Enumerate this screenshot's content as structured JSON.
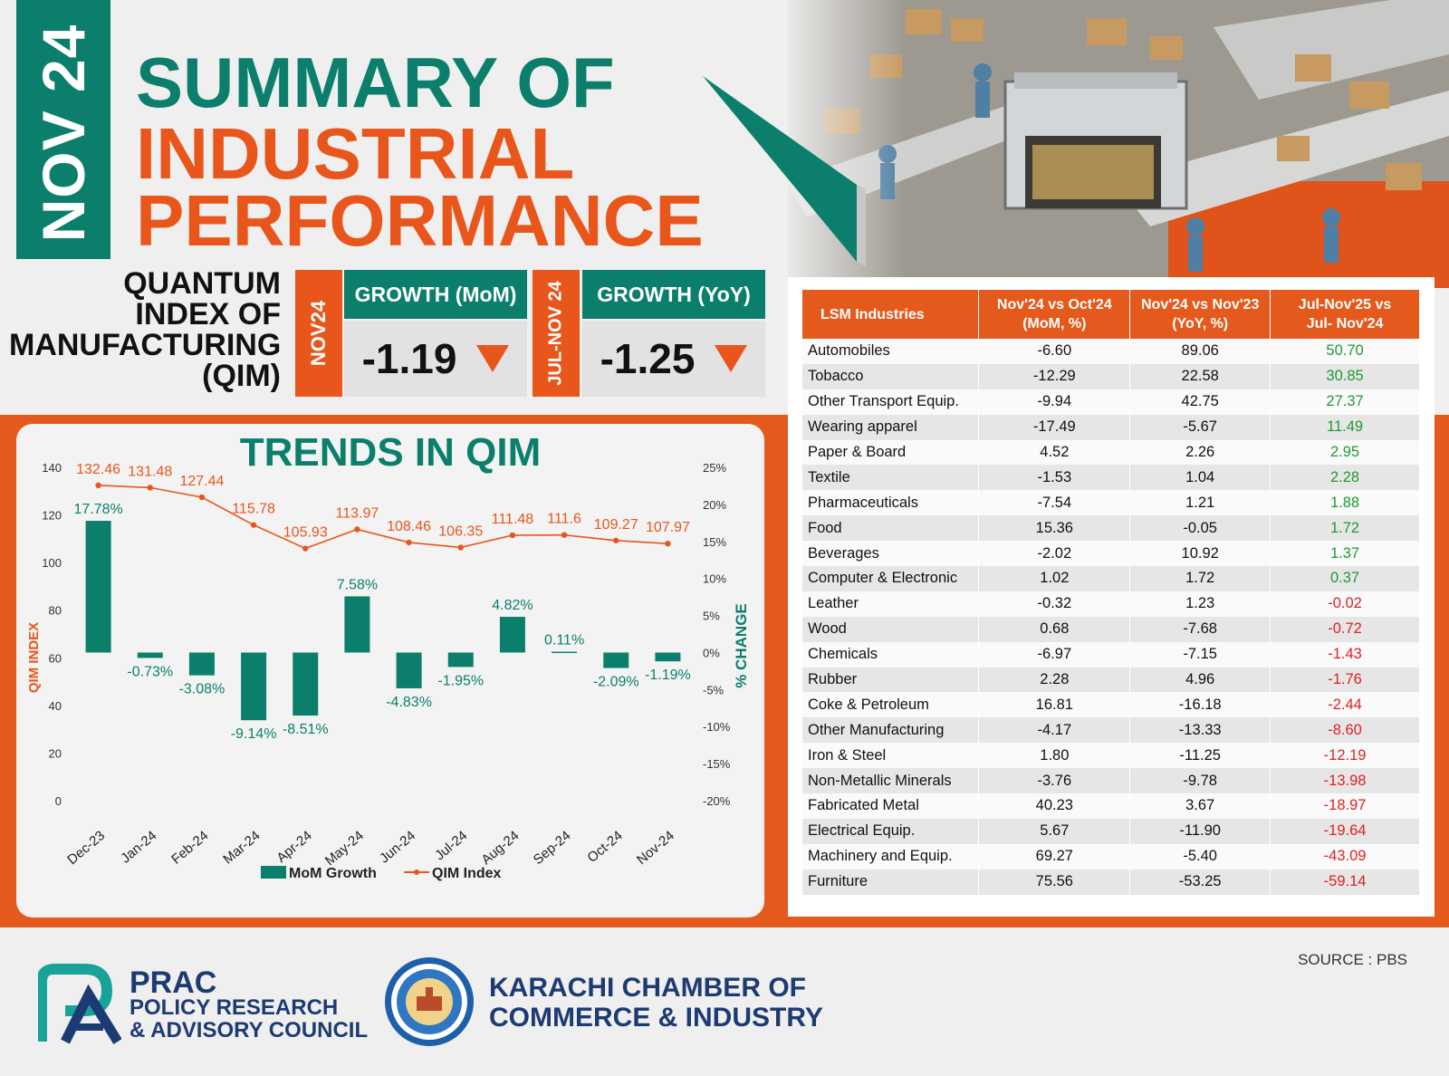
{
  "header": {
    "date_tab": "NOV 24",
    "title_line1": "SUMMARY OF",
    "title_line2": "INDUSTRIAL",
    "title_line3": "PERFORMANCE"
  },
  "qim": {
    "label_lines": [
      "QUANTUM",
      "INDEX OF",
      "MANUFACTURING",
      "(QIM)"
    ],
    "mom": {
      "period": "NOV24",
      "header": "GROWTH (MoM)",
      "value": "-1.19"
    },
    "yoy": {
      "period": "JUL-NOV 24",
      "header": "GROWTH (YoY)",
      "value": "-1.25"
    }
  },
  "colors": {
    "teal": "#0b7f6b",
    "orange": "#e8561b",
    "positive": "#1e9a33",
    "negative": "#e02020"
  },
  "chart_data": {
    "type": "bar",
    "title": "TRENDS IN QIM",
    "ylabel_left": "QIM INDEX",
    "ylabel_right": "% CHANGE",
    "ylim_left": [
      0,
      140
    ],
    "ylim_right": [
      -20,
      25
    ],
    "yticks_left": [
      "0",
      "20",
      "40",
      "60",
      "80",
      "100",
      "120",
      "140"
    ],
    "yticks_right": [
      "-20%",
      "-15%",
      "-10%",
      "-5%",
      "0%",
      "5%",
      "10%",
      "15%",
      "20%",
      "25%"
    ],
    "categories": [
      "Dec-23",
      "Jan-24",
      "Feb-24",
      "Mar-24",
      "Apr-24",
      "May-24",
      "Jun-24",
      "Jul-24",
      "Aug-24",
      "Sep-24",
      "Oct-24",
      "Nov-24"
    ],
    "series": [
      {
        "name": "MoM Growth",
        "type": "bar",
        "axis": "right",
        "values": [
          17.78,
          -0.73,
          -3.08,
          -9.14,
          -8.51,
          7.58,
          -4.83,
          -1.95,
          4.82,
          0.11,
          -2.09,
          -1.19
        ],
        "labels": [
          "17.78%",
          "-0.73%",
          "-3.08%",
          "-9.14%",
          "-8.51%",
          "7.58%",
          "-4.83%",
          "-1.95%",
          "4.82%",
          "0.11%",
          "-2.09%",
          "-1.19%"
        ]
      },
      {
        "name": "QIM Index",
        "type": "line",
        "axis": "left",
        "values": [
          132.46,
          131.48,
          127.44,
          115.78,
          105.93,
          113.97,
          108.46,
          106.35,
          111.48,
          111.6,
          109.27,
          107.97
        ],
        "labels": [
          "132.46",
          "131.48",
          "127.44",
          "115.78",
          "105.93",
          "113.97",
          "108.46",
          "106.35",
          "111.48",
          "111.6",
          "109.27",
          "107.97"
        ]
      }
    ],
    "legend": "bottom"
  },
  "table": {
    "headers": [
      "LSM Industries",
      "Nov'24 vs Oct'24",
      "(MoM, %)",
      "Nov'24 vs Nov'23",
      "(YoY, %)",
      "Jul-Nov'25 vs",
      "Jul- Nov'24"
    ],
    "rows": [
      {
        "name": "Automobiles",
        "mom": "-6.60",
        "yoy": "89.06",
        "cum": "50.70",
        "sign": "pos"
      },
      {
        "name": "Tobacco",
        "mom": "-12.29",
        "yoy": "22.58",
        "cum": "30.85",
        "sign": "pos"
      },
      {
        "name": "Other Transport Equip.",
        "mom": "-9.94",
        "yoy": "42.75",
        "cum": "27.37",
        "sign": "pos"
      },
      {
        "name": "Wearing apparel",
        "mom": "-17.49",
        "yoy": "-5.67",
        "cum": "11.49",
        "sign": "pos"
      },
      {
        "name": "Paper & Board",
        "mom": "4.52",
        "yoy": "2.26",
        "cum": "2.95",
        "sign": "pos"
      },
      {
        "name": "Textile",
        "mom": "-1.53",
        "yoy": "1.04",
        "cum": "2.28",
        "sign": "pos"
      },
      {
        "name": "Pharmaceuticals",
        "mom": "-7.54",
        "yoy": "1.21",
        "cum": "1.88",
        "sign": "pos"
      },
      {
        "name": "Food",
        "mom": "15.36",
        "yoy": "-0.05",
        "cum": "1.72",
        "sign": "pos"
      },
      {
        "name": "Beverages",
        "mom": "-2.02",
        "yoy": "10.92",
        "cum": "1.37",
        "sign": "pos"
      },
      {
        "name": "Computer & Electronic",
        "mom": "1.02",
        "yoy": "1.72",
        "cum": "0.37",
        "sign": "pos"
      },
      {
        "name": "Leather",
        "mom": "-0.32",
        "yoy": "1.23",
        "cum": "-0.02",
        "sign": "neg"
      },
      {
        "name": "Wood",
        "mom": "0.68",
        "yoy": "-7.68",
        "cum": "-0.72",
        "sign": "neg"
      },
      {
        "name": "Chemicals",
        "mom": "-6.97",
        "yoy": "-7.15",
        "cum": "-1.43",
        "sign": "neg"
      },
      {
        "name": "Rubber",
        "mom": "2.28",
        "yoy": "4.96",
        "cum": "-1.76",
        "sign": "neg"
      },
      {
        "name": "Coke & Petroleum",
        "mom": "16.81",
        "yoy": "-16.18",
        "cum": "-2.44",
        "sign": "neg"
      },
      {
        "name": "Other Manufacturing",
        "mom": "-4.17",
        "yoy": "-13.33",
        "cum": "-8.60",
        "sign": "neg"
      },
      {
        "name": "Iron & Steel",
        "mom": "1.80",
        "yoy": "-11.25",
        "cum": "-12.19",
        "sign": "neg"
      },
      {
        "name": "Non-Metallic Minerals",
        "mom": "-3.76",
        "yoy": "-9.78",
        "cum": "-13.98",
        "sign": "neg"
      },
      {
        "name": "Fabricated Metal",
        "mom": "40.23",
        "yoy": "3.67",
        "cum": "-18.97",
        "sign": "neg"
      },
      {
        "name": "Electrical Equip.",
        "mom": "5.67",
        "yoy": "-11.90",
        "cum": "-19.64",
        "sign": "neg"
      },
      {
        "name": "Machinery and Equip.",
        "mom": "69.27",
        "yoy": "-5.40",
        "cum": "-43.09",
        "sign": "neg"
      },
      {
        "name": "Furniture",
        "mom": "75.56",
        "yoy": "-53.25",
        "cum": "-59.14",
        "sign": "neg"
      }
    ]
  },
  "footer": {
    "source": "SOURCE : PBS",
    "prac_name": "PRAC",
    "prac_line2": "POLICY RESEARCH",
    "prac_line3": "& ADVISORY COUNCIL",
    "kcci_line1": "KARACHI CHAMBER OF",
    "kcci_line2": "COMMERCE & INDUSTRY",
    "kcci_seal_text": "KARACHI CHAMBER OF COMMERCE & INDUSTRY KCCI 1959"
  }
}
